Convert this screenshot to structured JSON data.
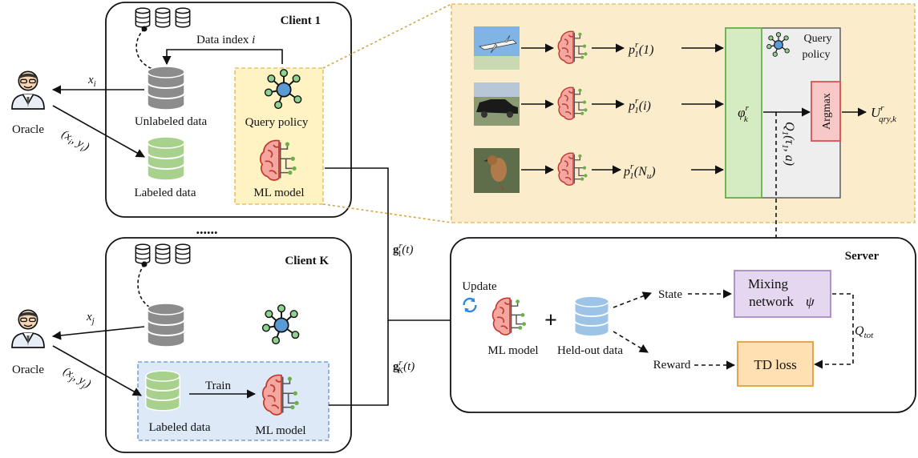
{
  "clients": {
    "client1": {
      "title": "Client 1",
      "data_index_label": "Data index",
      "data_index_var": "i",
      "unlabeled_label": "Unlabeled data",
      "labeled_label": "Labeled data",
      "query_policy_label": "Query policy",
      "ml_model_label": "ML model"
    },
    "clientK": {
      "title": "Client K",
      "labeled_label": "Labeled data",
      "train_label": "Train",
      "ml_model_label": "ML model"
    },
    "ellipsis": "......"
  },
  "oracle": {
    "top_label": "Oracle",
    "bottom_label": "Oracle",
    "x_i": "x",
    "x_i_sub": "i",
    "xy_i": "(x",
    "x_j": "x",
    "x_j_sub": "j"
  },
  "gradients": {
    "g1": "g",
    "g1_sup": "r",
    "g1_sub": "1",
    "g1_arg": "(t)",
    "gK": "g",
    "gK_sup": "r",
    "gK_sub": "K",
    "gK_arg": "(t)"
  },
  "detail": {
    "p_labels": [
      "(1)",
      "(i)",
      "(N"
    ],
    "p_base": "p",
    "p_sup": "r",
    "p_sub": "1",
    "nu_sub": "u",
    "phi": "φ",
    "phi_sup": "r",
    "phi_sub": "k",
    "query_policy_label": "Query policy",
    "argmax_label": "Argmax",
    "q_label": "Q",
    "q_sub": "1",
    "q_args": "(τ",
    "q_args_sub": "1",
    "q_args_end": ", a)",
    "u_label": "U",
    "u_sup": "r",
    "u_sub": "qry,k"
  },
  "server": {
    "title": "Server",
    "update_label": "Update",
    "ml_model_label": "ML model",
    "heldout_label": "Held-out data",
    "state_label": "State",
    "reward_label": "Reward",
    "mixing_line1": "Mixing",
    "mixing_line2": "network",
    "psi": "ψ",
    "td_loss_label": "TD loss",
    "qtot": "Q",
    "qtot_sub": "tot"
  },
  "colors": {
    "qp_box": "#fff3c4",
    "qp_border": "#e6c26a",
    "detail_bg": "#fbeccb",
    "phi_fill": "#d5ecc2",
    "phi_border": "#6ab04c",
    "argmax_fill": "#f8c8c8",
    "argmax_border": "#d9534f",
    "mixing_fill": "#e4d7ef",
    "mixing_border": "#a98bc4",
    "td_fill": "#ffe0b2",
    "td_border": "#e0a040",
    "train_fill": "#dde9f7",
    "train_border": "#7aa3d4",
    "unlabeled_db": "#8c8c8c",
    "labeled_db": "#a9d18e",
    "heldout_db": "#9dc3e6",
    "brain": "#f4a6a0"
  }
}
